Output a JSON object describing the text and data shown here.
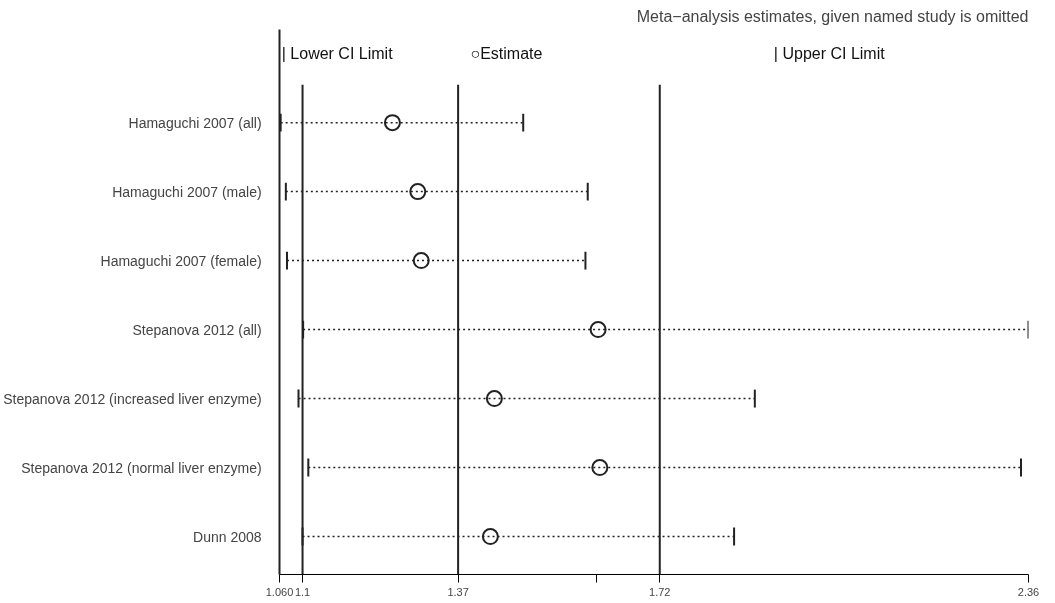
{
  "chart_data": {
    "type": "scatter",
    "orientation": "horizontal",
    "title": "Meta−analysis estimates, given named study is omitted",
    "categories": [
      "Hamaguchi  2007 (all)",
      "Hamaguchi  2007 (male)",
      "Hamaguchi  2007 (female)",
      "Stepanova  2012 (all)",
      "Stepanova  2012 (increased liver enzyme)",
      "Stepanova  2012 (normal liver enzyme)",
      "Dunn  2008"
    ],
    "values": [
      1.256,
      1.3,
      1.306,
      1.613,
      1.433,
      1.616,
      1.426
    ],
    "errors": [
      [
        1.062,
        1.483
      ],
      [
        1.071,
        1.595
      ],
      [
        1.073,
        1.591
      ],
      [
        1.101,
        2.36
      ],
      [
        1.093,
        1.885
      ],
      [
        1.11,
        2.347
      ],
      [
        1.1,
        1.849
      ]
    ],
    "color": "#222222",
    "marker": "circle",
    "line_style": "dotted",
    "annotations": [
      "| Lower CI Limit",
      "○Estimate",
      "| Upper CI Limit"
    ],
    "xlim": [
      1.06,
      2.36
    ],
    "xticks": [
      {
        "value": 1.06,
        "label": "1.060"
      },
      1.1,
      1.37,
      {
        "value": 1.61,
        "label": null
      },
      1.72,
      2.36
    ],
    "ref_lines": [
      {
        "axis": "x",
        "value": 1.1,
        "color": "#222222"
      },
      {
        "axis": "x",
        "value": 1.37,
        "color": "#222222"
      },
      {
        "axis": "x",
        "value": 1.72,
        "color": "#222222"
      }
    ],
    "grid": false
  }
}
